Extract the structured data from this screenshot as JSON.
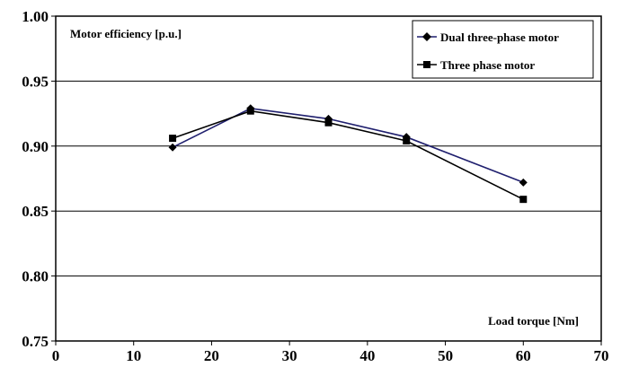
{
  "chart_data": {
    "type": "line",
    "title": "",
    "xlabel": "Load torque [Nm]",
    "ylabel": "Motor efficiency [p.u.]",
    "xlim": [
      0,
      70
    ],
    "ylim": [
      0.75,
      1.0
    ],
    "x_ticks": [
      "0",
      "10",
      "20",
      "30",
      "40",
      "50",
      "60",
      "70"
    ],
    "y_ticks": [
      "0.75",
      "0.80",
      "0.85",
      "0.90",
      "0.95",
      "1.00"
    ],
    "grid": "horizontal",
    "legend_position": "top-right",
    "series": [
      {
        "name": "Dual three-phase motor",
        "marker": "diamond",
        "color": "#1f1f6e",
        "x": [
          15,
          25,
          35,
          45,
          60
        ],
        "values": [
          0.899,
          0.929,
          0.921,
          0.907,
          0.872
        ]
      },
      {
        "name": "Three phase motor",
        "marker": "square",
        "color": "#000000",
        "x": [
          15,
          25,
          35,
          45,
          60
        ],
        "values": [
          0.906,
          0.927,
          0.918,
          0.904,
          0.859
        ]
      }
    ]
  }
}
